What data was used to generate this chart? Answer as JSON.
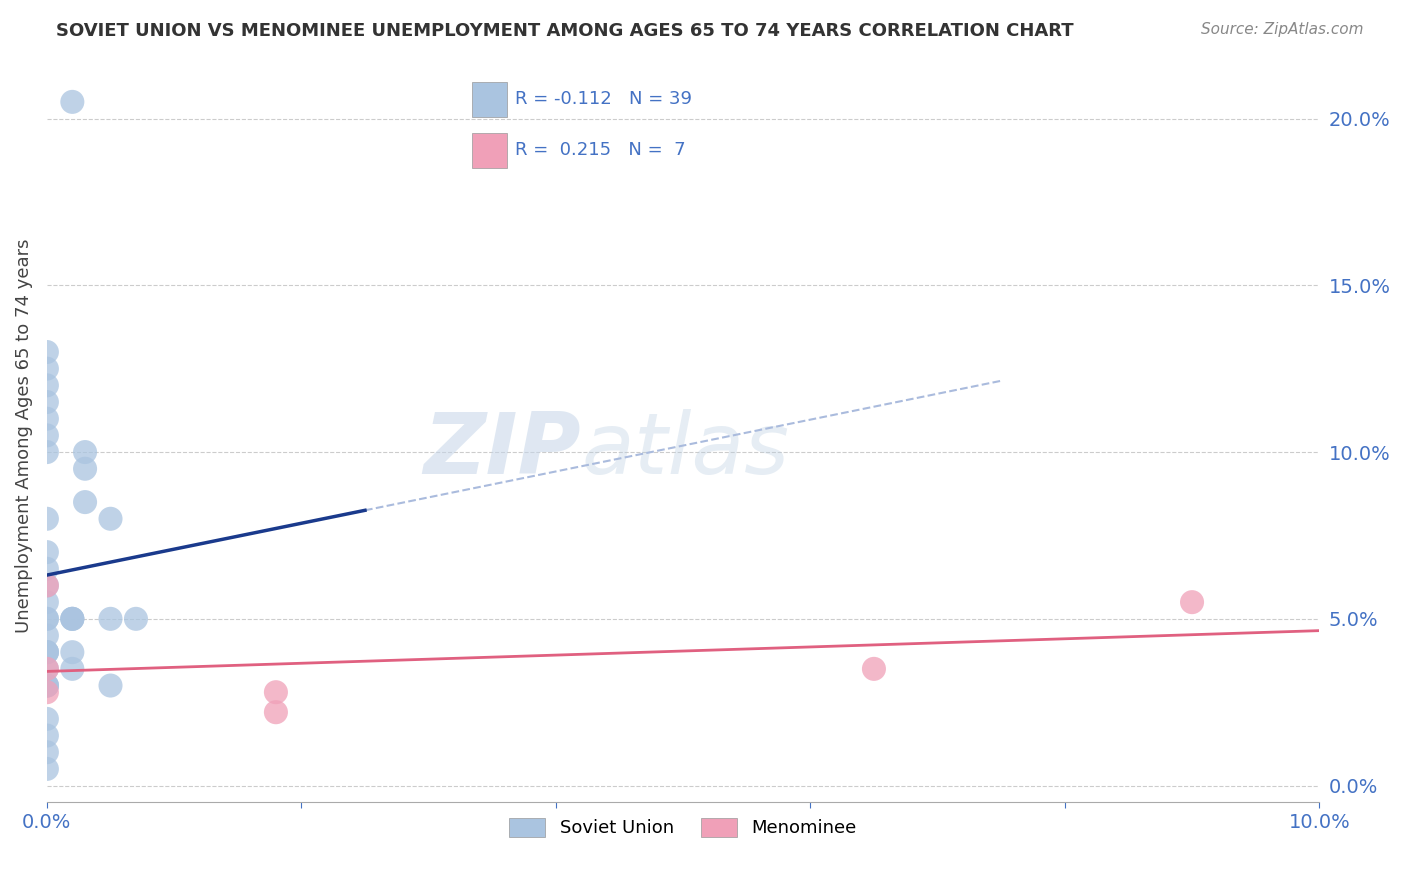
{
  "title": "SOVIET UNION VS MENOMINEE UNEMPLOYMENT AMONG AGES 65 TO 74 YEARS CORRELATION CHART",
  "source": "Source: ZipAtlas.com",
  "ylabel": "Unemployment Among Ages 65 to 74 years",
  "xlim": [
    0.0,
    0.1
  ],
  "ylim": [
    -0.005,
    0.215
  ],
  "yticks": [
    0.0,
    0.05,
    0.1,
    0.15,
    0.2
  ],
  "ytick_labels": [
    "0.0%",
    "5.0%",
    "10.0%",
    "15.0%",
    "20.0%"
  ],
  "xtick_labels_left": "0.0%",
  "xtick_labels_right": "10.0%",
  "soviet_x": [
    0.002,
    0.0,
    0.0,
    0.0,
    0.0,
    0.0,
    0.0,
    0.0,
    0.003,
    0.003,
    0.003,
    0.005,
    0.0,
    0.0,
    0.0,
    0.0,
    0.0,
    0.0,
    0.0,
    0.002,
    0.002,
    0.002,
    0.005,
    0.007,
    0.0,
    0.0,
    0.0,
    0.0,
    0.002,
    0.002,
    0.0,
    0.0,
    0.0,
    0.0,
    0.005,
    0.0,
    0.0,
    0.0,
    0.0
  ],
  "soviet_y": [
    0.205,
    0.13,
    0.125,
    0.12,
    0.115,
    0.11,
    0.105,
    0.1,
    0.1,
    0.095,
    0.085,
    0.08,
    0.08,
    0.07,
    0.065,
    0.06,
    0.055,
    0.05,
    0.05,
    0.05,
    0.05,
    0.05,
    0.05,
    0.05,
    0.045,
    0.04,
    0.04,
    0.04,
    0.04,
    0.035,
    0.035,
    0.03,
    0.03,
    0.03,
    0.03,
    0.02,
    0.015,
    0.01,
    0.005
  ],
  "menominee_x": [
    0.0,
    0.0,
    0.0,
    0.018,
    0.018,
    0.065,
    0.09
  ],
  "menominee_y": [
    0.06,
    0.035,
    0.028,
    0.028,
    0.022,
    0.035,
    0.055
  ],
  "soviet_R": -0.112,
  "soviet_N": 39,
  "menominee_R": 0.215,
  "menominee_N": 7,
  "soviet_color": "#aac4e0",
  "menominee_color": "#f0a0b8",
  "soviet_line_color": "#1a3a8c",
  "menominee_line_color": "#e06080",
  "dashed_line_color": "#aabbdd",
  "background_color": "#ffffff",
  "grid_color": "#cccccc",
  "watermark_zip": "ZIP",
  "watermark_atlas": "atlas",
  "legend_label_soviet": "Soviet Union",
  "legend_label_menominee": "Menominee",
  "tick_color": "#4472c4",
  "title_color": "#333333",
  "source_color": "#888888"
}
